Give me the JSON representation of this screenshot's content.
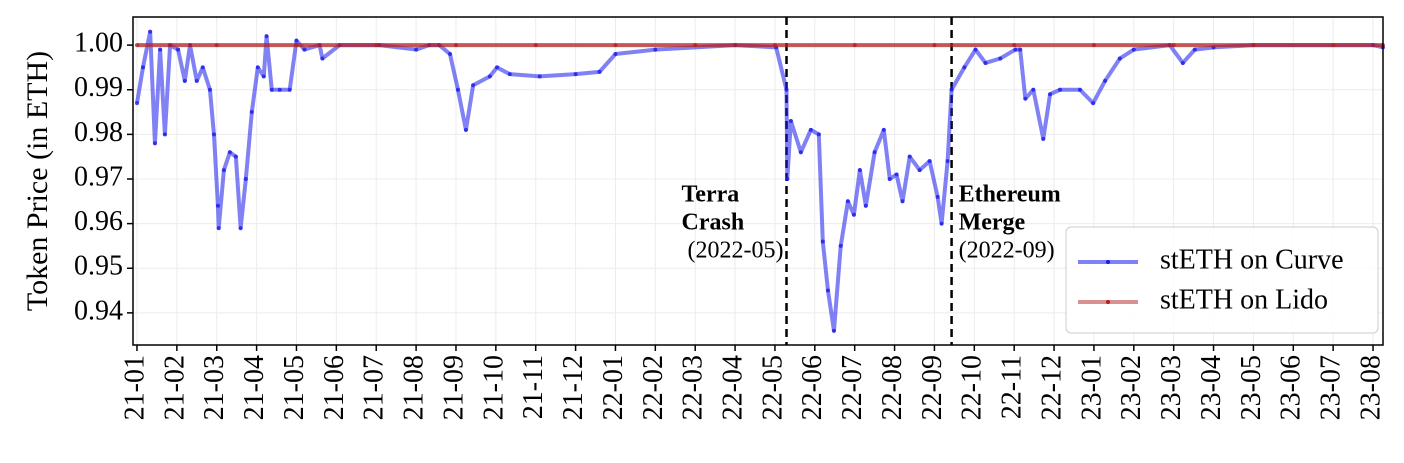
{
  "chart_data": {
    "type": "line",
    "y_label": "Token Price (in ETH)",
    "xlim": [
      -0.1,
      31.25
    ],
    "ylim": [
      0.9328,
      1.0063
    ],
    "xticks": [
      {
        "value": 0,
        "label": "21-01"
      },
      {
        "value": 1,
        "label": "21-02"
      },
      {
        "value": 2,
        "label": "21-03"
      },
      {
        "value": 3,
        "label": "21-04"
      },
      {
        "value": 4,
        "label": "21-05"
      },
      {
        "value": 5,
        "label": "21-06"
      },
      {
        "value": 6,
        "label": "21-07"
      },
      {
        "value": 7,
        "label": "21-08"
      },
      {
        "value": 8,
        "label": "21-09"
      },
      {
        "value": 9,
        "label": "21-10"
      },
      {
        "value": 10,
        "label": "21-11"
      },
      {
        "value": 11,
        "label": "21-12"
      },
      {
        "value": 12,
        "label": "22-01"
      },
      {
        "value": 13,
        "label": "22-02"
      },
      {
        "value": 14,
        "label": "22-03"
      },
      {
        "value": 15,
        "label": "22-04"
      },
      {
        "value": 16,
        "label": "22-05"
      },
      {
        "value": 17,
        "label": "22-06"
      },
      {
        "value": 18,
        "label": "22-07"
      },
      {
        "value": 19,
        "label": "22-08"
      },
      {
        "value": 20,
        "label": "22-09"
      },
      {
        "value": 21,
        "label": "22-10"
      },
      {
        "value": 22,
        "label": "22-11"
      },
      {
        "value": 23,
        "label": "22-12"
      },
      {
        "value": 24,
        "label": "23-01"
      },
      {
        "value": 25,
        "label": "23-02"
      },
      {
        "value": 26,
        "label": "23-03"
      },
      {
        "value": 27,
        "label": "23-04"
      },
      {
        "value": 28,
        "label": "23-05"
      },
      {
        "value": 29,
        "label": "23-06"
      },
      {
        "value": 30,
        "label": "23-07"
      },
      {
        "value": 31,
        "label": "23-08"
      }
    ],
    "yticks": [
      0.94,
      0.95,
      0.96,
      0.97,
      0.98,
      0.99,
      {
        "value": 1,
        "label": "1.00"
      }
    ],
    "grid": true,
    "legend": "lower right",
    "series": [
      {
        "name": "stETH on Curve",
        "color": "#1a1aee",
        "x": [
          0,
          0.15,
          0.33,
          0.45,
          0.58,
          0.7,
          0.83,
          1.03,
          1.2,
          1.33,
          1.5,
          1.65,
          1.83,
          1.93,
          2.03,
          2.05,
          2.18,
          2.33,
          2.48,
          2.6,
          2.73,
          2.88,
          3.03,
          3.18,
          3.25,
          3.38,
          3.58,
          3.83,
          4.0,
          4.2,
          4.58,
          4.65,
          5.08,
          6.08,
          7,
          7.33,
          7.58,
          7.85,
          8.05,
          8.25,
          8.43,
          8.85,
          9.03,
          9.35,
          10.1,
          11.0,
          11.6,
          12,
          13,
          15,
          16.03,
          16.29,
          16.31,
          16.4,
          16.65,
          16.9,
          17.1,
          17.2,
          17.33,
          17.48,
          17.65,
          17.83,
          17.98,
          18.13,
          18.28,
          18.5,
          18.73,
          18.88,
          19.05,
          19.2,
          19.38,
          19.63,
          19.88,
          20.08,
          20.18,
          20.33,
          20.43,
          20.75,
          21.03,
          21.28,
          21.65,
          22.03,
          22.15,
          22.28,
          22.48,
          22.73,
          22.9,
          23.15,
          23.65,
          23.98,
          24.28,
          24.65,
          25,
          25.9,
          26.23,
          26.53,
          27,
          28,
          31,
          31.25
        ],
        "values": [
          0.987,
          0.995,
          1.003,
          0.978,
          0.999,
          0.98,
          1.0,
          0.999,
          0.992,
          1.0,
          0.992,
          0.995,
          0.99,
          0.98,
          0.964,
          0.959,
          0.972,
          0.976,
          0.975,
          0.959,
          0.97,
          0.985,
          0.995,
          0.993,
          1.002,
          0.99,
          0.99,
          0.99,
          1.001,
          0.999,
          1.0,
          0.997,
          1.0,
          1.0,
          0.999,
          1.0,
          1.0,
          0.998,
          0.99,
          0.981,
          0.991,
          0.993,
          0.995,
          0.9935,
          0.993,
          0.9935,
          0.994,
          0.998,
          0.999,
          1.0,
          0.9995,
          0.99,
          0.97,
          0.983,
          0.976,
          0.981,
          0.98,
          0.956,
          0.945,
          0.936,
          0.955,
          0.965,
          0.962,
          0.972,
          0.964,
          0.976,
          0.981,
          0.97,
          0.971,
          0.965,
          0.975,
          0.972,
          0.974,
          0.966,
          0.96,
          0.974,
          0.99,
          0.995,
          0.999,
          0.996,
          0.997,
          0.999,
          0.999,
          0.988,
          0.99,
          0.979,
          0.989,
          0.99,
          0.99,
          0.987,
          0.992,
          0.997,
          0.999,
          1.0,
          0.996,
          0.999,
          0.9995,
          1.0,
          1.0,
          0.9995
        ]
      },
      {
        "name": "stETH on Lido",
        "color": "#b22222",
        "x": [
          0,
          2,
          4,
          6,
          8,
          10,
          12,
          14,
          16,
          18,
          20,
          22,
          24,
          26,
          28,
          30,
          31.25
        ],
        "values": [
          1,
          1,
          1,
          1,
          1,
          1,
          1,
          1,
          1,
          1,
          1,
          1,
          1,
          1,
          1,
          1,
          1
        ]
      }
    ],
    "annotations": [
      {
        "x": 16.29,
        "title": [
          "Terra",
          "Crash"
        ],
        "date": "(2022-05)"
      },
      {
        "x": 20.43,
        "title": [
          "Ethereum",
          "Merge"
        ],
        "date": "(2022-09)"
      }
    ]
  }
}
